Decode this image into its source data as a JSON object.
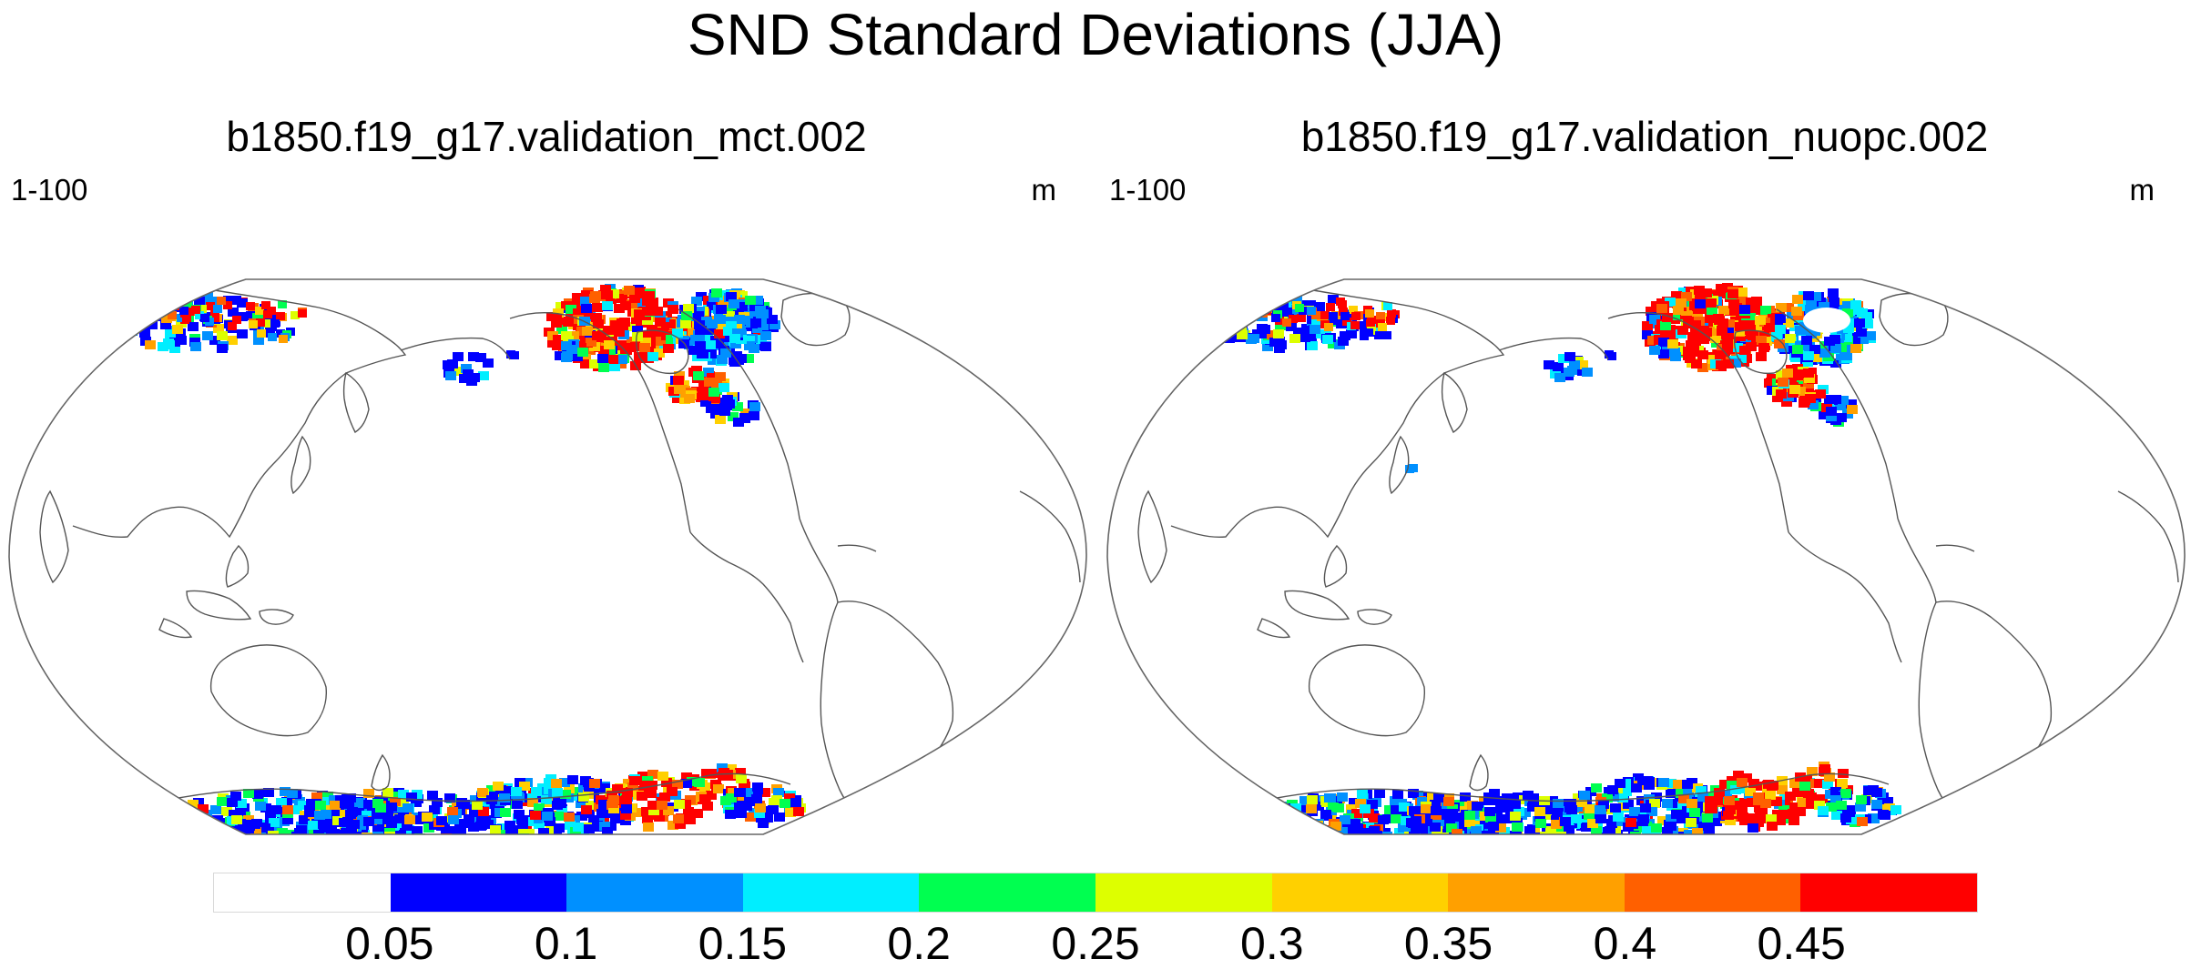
{
  "figure": {
    "title": "SND Standard Deviations (JJA)"
  },
  "panels": [
    {
      "id": "left",
      "title": "b1850.f19_g17.validation_mct.002",
      "left_label": "1-100",
      "right_label": "m"
    },
    {
      "id": "right",
      "title": "b1850.f19_g17.validation_nuopc.002",
      "left_label": "1-100",
      "right_label": "m"
    }
  ],
  "colorbar": {
    "colors": [
      "#ffffff",
      "#0000ff",
      "#0090ff",
      "#00eeff",
      "#00ff50",
      "#ddff00",
      "#ffd000",
      "#ffa000",
      "#ff6000",
      "#ff0000"
    ],
    "labels": [
      "0.05",
      "0.1",
      "0.15",
      "0.2",
      "0.25",
      "0.3",
      "0.35",
      "0.4",
      "0.45"
    ]
  },
  "colors": {
    "coast": "#555555",
    "frame": "#666666"
  },
  "chart_data": {
    "type": "heatmap",
    "variable": "SND",
    "statistic": "Standard Deviation",
    "season": "JJA",
    "units": "m",
    "levels": [
      0.05,
      0.1,
      0.15,
      0.2,
      0.25,
      0.3,
      0.35,
      0.4,
      0.45
    ],
    "panels": [
      {
        "case": "b1850.f19_g17.validation_mct.002",
        "label": "1-100"
      },
      {
        "case": "b1850.f19_g17.validation_nuopc.002",
        "label": "1-100"
      }
    ]
  }
}
